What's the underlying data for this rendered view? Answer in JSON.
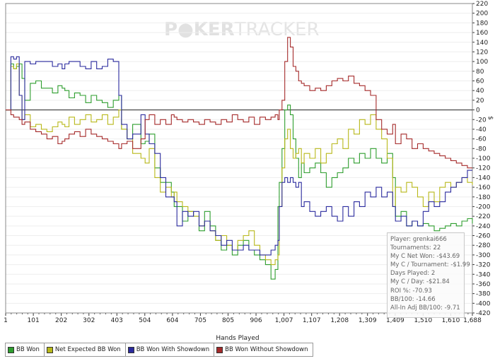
{
  "watermark": {
    "part1": "P",
    "part2": "KER",
    "part3": "TRACKER"
  },
  "chart_data": {
    "type": "line",
    "title": "",
    "xlabel": "Hands Played",
    "ylabel": "$",
    "xlim": [
      1,
      1688
    ],
    "ylim": [
      -420,
      220
    ],
    "x_ticks": [
      1,
      101,
      202,
      302,
      403,
      504,
      604,
      705,
      805,
      906,
      1007,
      1107,
      1208,
      1309,
      1409,
      1510,
      1610,
      1688
    ],
    "x_tick_labels": [
      "1",
      "101",
      "202",
      "302",
      "403",
      "504",
      "604",
      "705",
      "805",
      "906",
      "1,007",
      "1,107",
      "1,208",
      "1,309",
      "1,409",
      "1,510",
      "1,610",
      "1,688"
    ],
    "y_ticks": [
      220,
      200,
      180,
      160,
      140,
      120,
      100,
      80,
      60,
      40,
      20,
      0,
      -20,
      -40,
      -60,
      -80,
      -100,
      -120,
      -140,
      -160,
      -180,
      -200,
      -220,
      -240,
      -260,
      -280,
      -300,
      -320,
      -340,
      -360,
      -380,
      -400,
      -420
    ],
    "series": [
      {
        "name": "BB Won",
        "color": "#2e9e2e",
        "step": true,
        "x": [
          1,
          20,
          30,
          40,
          50,
          60,
          70,
          90,
          110,
          130,
          150,
          170,
          190,
          205,
          215,
          230,
          250,
          270,
          290,
          310,
          330,
          350,
          370,
          390,
          410,
          420,
          440,
          460,
          490,
          505,
          520,
          540,
          560,
          580,
          600,
          610,
          620,
          640,
          660,
          680,
          700,
          720,
          740,
          760,
          780,
          800,
          820,
          840,
          860,
          880,
          900,
          920,
          940,
          960,
          975,
          985,
          990,
          1000,
          1010,
          1020,
          1030,
          1040,
          1050,
          1060,
          1070,
          1080,
          1100,
          1120,
          1140,
          1160,
          1180,
          1200,
          1220,
          1240,
          1260,
          1280,
          1300,
          1320,
          1340,
          1360,
          1380,
          1400,
          1410,
          1430,
          1450,
          1470,
          1490,
          1510,
          1530,
          1550,
          1570,
          1590,
          1610,
          1630,
          1650,
          1670,
          1688
        ],
        "y": [
          0,
          95,
          85,
          90,
          95,
          65,
          20,
          55,
          60,
          45,
          45,
          35,
          50,
          45,
          40,
          25,
          35,
          30,
          15,
          30,
          20,
          15,
          5,
          20,
          30,
          -40,
          -60,
          -30,
          -70,
          -65,
          -50,
          -120,
          -150,
          -150,
          -170,
          -200,
          -200,
          -230,
          -210,
          -220,
          -250,
          -210,
          -240,
          -270,
          -290,
          -280,
          -300,
          -280,
          -270,
          -290,
          -300,
          -310,
          -320,
          -350,
          -330,
          -200,
          -150,
          -80,
          0,
          10,
          -10,
          -60,
          -100,
          -140,
          -110,
          -130,
          -120,
          -110,
          -130,
          -160,
          -140,
          -130,
          -120,
          -100,
          -110,
          -90,
          -100,
          -80,
          -100,
          -110,
          -90,
          -140,
          -220,
          -210,
          -240,
          -230,
          -240,
          -235,
          -240,
          -250,
          -245,
          -240,
          -235,
          -240,
          -230,
          -225,
          -235
        ]
      },
      {
        "name": "Net Expected BB Won",
        "color": "#b8b81a",
        "step": true,
        "x": [
          1,
          20,
          30,
          40,
          50,
          60,
          70,
          90,
          110,
          130,
          150,
          170,
          190,
          205,
          215,
          230,
          250,
          270,
          290,
          310,
          330,
          350,
          370,
          390,
          410,
          420,
          440,
          460,
          490,
          505,
          520,
          540,
          560,
          580,
          600,
          610,
          620,
          640,
          660,
          680,
          700,
          720,
          740,
          760,
          780,
          800,
          820,
          840,
          860,
          880,
          900,
          920,
          940,
          960,
          975,
          985,
          990,
          1000,
          1010,
          1020,
          1030,
          1040,
          1050,
          1060,
          1070,
          1080,
          1100,
          1120,
          1140,
          1160,
          1180,
          1200,
          1220,
          1240,
          1260,
          1280,
          1300,
          1320,
          1340,
          1360,
          1380,
          1400,
          1410,
          1430,
          1450,
          1470,
          1490,
          1510,
          1530,
          1550,
          1570,
          1590,
          1610,
          1630,
          1650,
          1670,
          1688
        ],
        "y": [
          0,
          90,
          85,
          95,
          30,
          -20,
          -10,
          -35,
          -30,
          -40,
          -45,
          -35,
          -25,
          -30,
          -35,
          -15,
          -30,
          -20,
          -10,
          -25,
          -20,
          -10,
          -30,
          -15,
          0,
          -40,
          -60,
          -90,
          -100,
          -110,
          -80,
          -140,
          -170,
          -160,
          -180,
          -170,
          -190,
          -200,
          -210,
          -220,
          -240,
          -230,
          -250,
          -270,
          -260,
          -280,
          -290,
          -270,
          -260,
          -250,
          -280,
          -300,
          -310,
          -320,
          -310,
          -300,
          -200,
          -120,
          -60,
          -40,
          -80,
          -100,
          -90,
          -80,
          -110,
          -90,
          -100,
          -80,
          -110,
          -90,
          -70,
          -60,
          -80,
          -40,
          -50,
          -20,
          -30,
          -10,
          -40,
          -60,
          -100,
          -200,
          -160,
          -170,
          -150,
          -160,
          -180,
          -200,
          -170,
          -190,
          -160,
          -150,
          -160,
          -150,
          -140,
          -150,
          -155
        ]
      },
      {
        "name": "BB Won With Showdown",
        "color": "#2a2a9e",
        "step": true,
        "x": [
          1,
          20,
          30,
          40,
          50,
          60,
          70,
          90,
          110,
          130,
          150,
          170,
          190,
          205,
          215,
          230,
          250,
          270,
          290,
          310,
          330,
          350,
          370,
          390,
          410,
          420,
          440,
          460,
          490,
          505,
          520,
          540,
          560,
          580,
          600,
          610,
          620,
          640,
          660,
          680,
          700,
          720,
          740,
          760,
          780,
          800,
          820,
          840,
          860,
          880,
          900,
          920,
          940,
          960,
          975,
          985,
          990,
          1000,
          1010,
          1020,
          1030,
          1040,
          1050,
          1060,
          1070,
          1080,
          1100,
          1120,
          1140,
          1160,
          1180,
          1200,
          1220,
          1240,
          1260,
          1280,
          1300,
          1320,
          1340,
          1360,
          1380,
          1400,
          1410,
          1430,
          1450,
          1470,
          1490,
          1510,
          1530,
          1550,
          1570,
          1590,
          1610,
          1630,
          1650,
          1670,
          1688
        ],
        "y": [
          0,
          110,
          105,
          110,
          30,
          -20,
          100,
          95,
          100,
          100,
          100,
          90,
          95,
          85,
          95,
          100,
          100,
          90,
          85,
          100,
          85,
          90,
          105,
          100,
          30,
          -30,
          -60,
          -50,
          -10,
          -50,
          -70,
          -90,
          -140,
          -180,
          -180,
          -190,
          -240,
          -210,
          -220,
          -210,
          -240,
          -230,
          -250,
          -260,
          -280,
          -270,
          -290,
          -290,
          -280,
          -290,
          -290,
          -300,
          -300,
          -290,
          -280,
          -270,
          -200,
          -150,
          -140,
          -150,
          -140,
          -150,
          -160,
          -150,
          -200,
          -190,
          -210,
          -220,
          -210,
          -200,
          -220,
          -230,
          -200,
          -220,
          -190,
          -200,
          -170,
          -180,
          -160,
          -180,
          -170,
          -200,
          -230,
          -220,
          -240,
          -230,
          -240,
          -210,
          -190,
          -200,
          -190,
          -170,
          -160,
          -150,
          -140,
          -125,
          -125
        ]
      },
      {
        "name": "BB Won Without Showdown",
        "color": "#a52a2a",
        "step": true,
        "x": [
          1,
          20,
          30,
          40,
          50,
          60,
          70,
          90,
          110,
          130,
          150,
          170,
          190,
          205,
          215,
          230,
          250,
          270,
          290,
          310,
          330,
          350,
          370,
          390,
          410,
          420,
          440,
          460,
          490,
          505,
          520,
          540,
          560,
          580,
          600,
          610,
          620,
          640,
          660,
          680,
          700,
          720,
          740,
          760,
          780,
          800,
          820,
          840,
          860,
          880,
          900,
          920,
          940,
          960,
          975,
          985,
          990,
          1000,
          1010,
          1020,
          1030,
          1040,
          1050,
          1060,
          1070,
          1080,
          1100,
          1120,
          1140,
          1160,
          1180,
          1200,
          1220,
          1240,
          1260,
          1280,
          1300,
          1320,
          1340,
          1360,
          1380,
          1400,
          1410,
          1430,
          1450,
          1470,
          1490,
          1510,
          1530,
          1550,
          1570,
          1590,
          1610,
          1630,
          1650,
          1670,
          1688
        ],
        "y": [
          0,
          -10,
          -15,
          -15,
          -20,
          -30,
          -25,
          -40,
          -45,
          -50,
          -60,
          -55,
          -70,
          -65,
          -60,
          -50,
          -45,
          -55,
          -40,
          -50,
          -55,
          -60,
          -65,
          -70,
          -80,
          -70,
          -65,
          -80,
          -60,
          -20,
          -10,
          -30,
          -20,
          -30,
          -10,
          -15,
          -20,
          -25,
          -20,
          -25,
          -30,
          -20,
          -25,
          -30,
          -20,
          -25,
          -10,
          -20,
          -25,
          -15,
          -30,
          -15,
          -20,
          -15,
          -10,
          -20,
          0,
          20,
          100,
          150,
          130,
          90,
          80,
          60,
          55,
          50,
          40,
          45,
          40,
          50,
          60,
          65,
          60,
          70,
          55,
          50,
          40,
          30,
          -20,
          -40,
          -50,
          -30,
          -70,
          -50,
          -60,
          -80,
          -70,
          -80,
          -85,
          -90,
          -95,
          -100,
          -105,
          -110,
          -115,
          -120,
          -120
        ]
      }
    ]
  },
  "stats_box": {
    "player": "Player: grenkai666",
    "tournaments": "Tournaments: 22",
    "net_won": "My C Net Won: -$43.69",
    "per_tournament": "My C / Tournament: -$1.99",
    "days_played": "Days Played: 2",
    "per_day": "My C / Day: -$21.84",
    "roi": "ROI %: -70.93",
    "bb100": "BB/100: -14.66",
    "allin_bb100": "All-In Adj BB/100: -9.71"
  },
  "legend": {
    "items": [
      {
        "label": "BB Won",
        "color": "#2e9e2e"
      },
      {
        "label": "Net Expected BB Won",
        "color": "#b8b81a"
      },
      {
        "label": "BB Won With Showdown",
        "color": "#2a2a9e"
      },
      {
        "label": "BB Won Without Showdown",
        "color": "#a52a2a"
      }
    ]
  }
}
